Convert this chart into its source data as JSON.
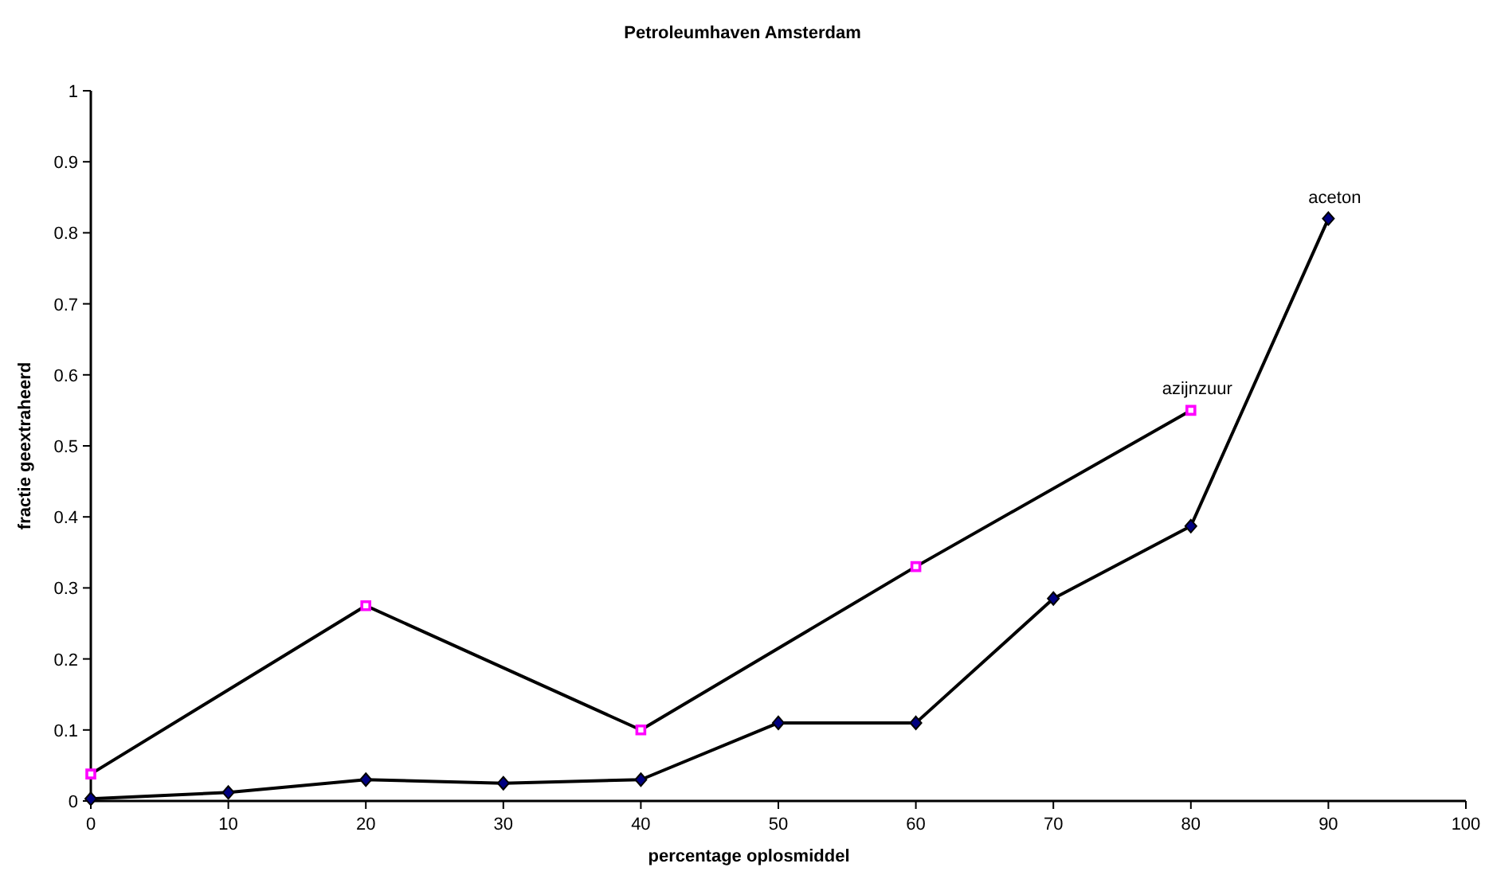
{
  "chart_data": {
    "type": "line",
    "title": "Petroleumhaven Amsterdam",
    "xlabel": "percentage oplosmiddel",
    "ylabel": "fractie geextraheerd",
    "xlim": [
      0,
      100
    ],
    "xticks": [
      0,
      10,
      20,
      30,
      40,
      50,
      60,
      70,
      80,
      90,
      100
    ],
    "ylim": [
      0,
      1
    ],
    "yticks": [
      0,
      0.1,
      0.2,
      0.3,
      0.4,
      0.5,
      0.6,
      0.7,
      0.8,
      0.9,
      1
    ],
    "grid": false,
    "series": [
      {
        "name": "azijnzuur",
        "color": "#ff00ff",
        "marker": "square",
        "x": [
          0,
          20,
          40,
          60,
          80
        ],
        "values": [
          0.038,
          0.275,
          0.1,
          0.33,
          0.55
        ]
      },
      {
        "name": "aceton",
        "color": "#000080",
        "marker": "diamond",
        "x": [
          0,
          10,
          20,
          30,
          40,
          50,
          60,
          70,
          80,
          90
        ],
        "values": [
          0.003,
          0.012,
          0.03,
          0.025,
          0.03,
          0.11,
          0.11,
          0.285,
          0.387,
          0.82
        ]
      }
    ]
  }
}
